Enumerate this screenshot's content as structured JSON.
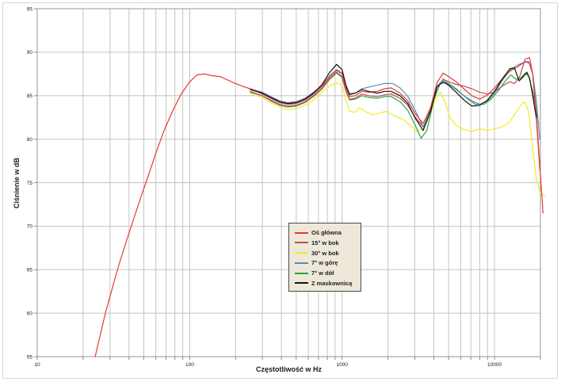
{
  "figure": {
    "background": "#ffffff",
    "frame_border_color": "#d6d6d6",
    "plot_border_color": "#a6a6a6",
    "gridline_color": "#c4c4c4",
    "tick_color": "#8a8a8a",
    "text_color": "#1a1a1a",
    "legend_background": "#ede8d9",
    "legend_border": "#4a4a4a"
  },
  "chart_data": {
    "type": "line",
    "title": "",
    "xlabel": "Częstotliwość w Hz",
    "ylabel": "Ciśnienie w dB",
    "x_scale": "log",
    "xlim": [
      10,
      20000
    ],
    "ylim": [
      55,
      95
    ],
    "grid": true,
    "legend_position": "inside-center-bottom",
    "y_ticks": [
      55,
      60,
      65,
      70,
      75,
      80,
      85,
      90,
      95
    ],
    "x_tick_labels": [
      {
        "value": 10,
        "label": "10"
      },
      {
        "value": 100,
        "label": "100"
      },
      {
        "value": 1000,
        "label": "1000"
      },
      {
        "value": 10000,
        "label": "10000"
      }
    ],
    "series": [
      {
        "id": "os-glowna",
        "name": "Oś główna",
        "color": "#e43a31",
        "points": [
          [
            24,
            55
          ],
          [
            26,
            57.6
          ],
          [
            28,
            60
          ],
          [
            31,
            62.8
          ],
          [
            34,
            65.3
          ],
          [
            38,
            68
          ],
          [
            43,
            70.9
          ],
          [
            48,
            73.4
          ],
          [
            54,
            76
          ],
          [
            60,
            78.4
          ],
          [
            68,
            81
          ],
          [
            78,
            83.4
          ],
          [
            88,
            85.2
          ],
          [
            100,
            86.6
          ],
          [
            112,
            87.4
          ],
          [
            125,
            87.5
          ],
          [
            140,
            87.3
          ],
          [
            158,
            87.2
          ],
          [
            178,
            86.8
          ],
          [
            200,
            86.4
          ],
          [
            230,
            86
          ],
          [
            260,
            85.7
          ],
          [
            300,
            85.2
          ],
          [
            340,
            84.7
          ],
          [
            390,
            84.2
          ],
          [
            440,
            84
          ],
          [
            500,
            84.1
          ],
          [
            570,
            84.5
          ],
          [
            650,
            85.2
          ],
          [
            740,
            86.1
          ],
          [
            830,
            87.2
          ],
          [
            920,
            87.9
          ],
          [
            1000,
            87.5
          ],
          [
            1060,
            85.9
          ],
          [
            1120,
            84.9
          ],
          [
            1220,
            85
          ],
          [
            1350,
            85.5
          ],
          [
            1500,
            85.4
          ],
          [
            1700,
            85.5
          ],
          [
            1900,
            85.8
          ],
          [
            2100,
            85.9
          ],
          [
            2400,
            85.3
          ],
          [
            2700,
            84.4
          ],
          [
            3000,
            83
          ],
          [
            3400,
            81.8
          ],
          [
            3800,
            83.6
          ],
          [
            4200,
            86.5
          ],
          [
            4600,
            87.6
          ],
          [
            5000,
            87.2
          ],
          [
            5600,
            86.6
          ],
          [
            6300,
            85.8
          ],
          [
            7100,
            85
          ],
          [
            8000,
            84.6
          ],
          [
            9000,
            85.1
          ],
          [
            10000,
            85.9
          ],
          [
            11200,
            86.9
          ],
          [
            12600,
            87.8
          ],
          [
            14100,
            88.3
          ],
          [
            15900,
            88.9
          ],
          [
            16800,
            88.9
          ],
          [
            17800,
            87.5
          ],
          [
            18800,
            83
          ],
          [
            19800,
            77
          ],
          [
            20800,
            71.5
          ]
        ]
      },
      {
        "id": "15-w-bok",
        "name": "15° w bok",
        "color": "#c0504d",
        "points": [
          [
            250,
            85.5
          ],
          [
            300,
            85
          ],
          [
            340,
            84.5
          ],
          [
            390,
            84
          ],
          [
            440,
            83.8
          ],
          [
            500,
            83.9
          ],
          [
            570,
            84.3
          ],
          [
            650,
            85
          ],
          [
            740,
            85.9
          ],
          [
            830,
            87
          ],
          [
            920,
            87.7
          ],
          [
            1000,
            87.2
          ],
          [
            1060,
            85.6
          ],
          [
            1120,
            84.6
          ],
          [
            1220,
            84.7
          ],
          [
            1350,
            85.2
          ],
          [
            1500,
            85
          ],
          [
            1700,
            84.9
          ],
          [
            1900,
            85.1
          ],
          [
            2100,
            85.2
          ],
          [
            2400,
            84.7
          ],
          [
            2700,
            83.9
          ],
          [
            3000,
            82.6
          ],
          [
            3400,
            81.4
          ],
          [
            3800,
            83.2
          ],
          [
            4200,
            86
          ],
          [
            4600,
            86.9
          ],
          [
            5000,
            86.6
          ],
          [
            5600,
            86.3
          ],
          [
            6300,
            86.1
          ],
          [
            7100,
            85.8
          ],
          [
            8000,
            85.4
          ],
          [
            9000,
            85.2
          ],
          [
            10000,
            85.4
          ],
          [
            11200,
            86.1
          ],
          [
            12600,
            86.6
          ],
          [
            13500,
            86.4
          ],
          [
            14500,
            87
          ],
          [
            15900,
            89.2
          ],
          [
            17000,
            89.4
          ],
          [
            17800,
            87.5
          ],
          [
            18800,
            82.5
          ],
          [
            19800,
            76.5
          ]
        ]
      },
      {
        "id": "30-w-bok",
        "name": "30° w bok",
        "color": "#f2ea25",
        "points": [
          [
            250,
            85.2
          ],
          [
            300,
            84.8
          ],
          [
            340,
            84.2
          ],
          [
            390,
            83.7
          ],
          [
            440,
            83.4
          ],
          [
            500,
            83.5
          ],
          [
            570,
            83.9
          ],
          [
            650,
            84.5
          ],
          [
            740,
            85.4
          ],
          [
            830,
            86.1
          ],
          [
            920,
            86.5
          ],
          [
            1000,
            86.2
          ],
          [
            1060,
            84.5
          ],
          [
            1120,
            83.2
          ],
          [
            1220,
            83.1
          ],
          [
            1300,
            83.6
          ],
          [
            1450,
            83.1
          ],
          [
            1600,
            82.8
          ],
          [
            1750,
            83
          ],
          [
            1950,
            83.2
          ],
          [
            2200,
            82.7
          ],
          [
            2500,
            82.3
          ],
          [
            2800,
            81.6
          ],
          [
            3100,
            80.9
          ],
          [
            3400,
            81.2
          ],
          [
            3800,
            82.9
          ],
          [
            4100,
            84.6
          ],
          [
            4400,
            85.4
          ],
          [
            4700,
            84.4
          ],
          [
            5100,
            82.5
          ],
          [
            5600,
            81.6
          ],
          [
            6300,
            81.1
          ],
          [
            7100,
            80.9
          ],
          [
            8000,
            81.2
          ],
          [
            9000,
            81
          ],
          [
            10000,
            81.2
          ],
          [
            11200,
            81.4
          ],
          [
            12600,
            82
          ],
          [
            14100,
            83.3
          ],
          [
            15000,
            84
          ],
          [
            15900,
            84.3
          ],
          [
            16800,
            83
          ],
          [
            17800,
            79
          ],
          [
            18800,
            75.5
          ],
          [
            20000,
            73.8
          ],
          [
            21500,
            73.4
          ]
        ]
      },
      {
        "id": "7-w-gore",
        "name": "7° w górę",
        "color": "#5b8ab8",
        "points": [
          [
            250,
            85.8
          ],
          [
            300,
            85.4
          ],
          [
            340,
            84.9
          ],
          [
            390,
            84.4
          ],
          [
            440,
            84.2
          ],
          [
            500,
            84.3
          ],
          [
            570,
            84.7
          ],
          [
            650,
            85.4
          ],
          [
            740,
            86.2
          ],
          [
            830,
            87.3
          ],
          [
            920,
            88
          ],
          [
            1000,
            87.6
          ],
          [
            1060,
            86
          ],
          [
            1120,
            85.1
          ],
          [
            1220,
            85.3
          ],
          [
            1350,
            85.8
          ],
          [
            1500,
            86
          ],
          [
            1700,
            86.2
          ],
          [
            1900,
            86.4
          ],
          [
            2150,
            86.4
          ],
          [
            2400,
            85.9
          ],
          [
            2700,
            84.9
          ],
          [
            3000,
            83.4
          ],
          [
            3400,
            81.4
          ],
          [
            3800,
            83.4
          ],
          [
            4200,
            86.1
          ],
          [
            4600,
            86.8
          ],
          [
            5000,
            86.4
          ],
          [
            5600,
            85.8
          ],
          [
            6300,
            85
          ],
          [
            7100,
            84.4
          ],
          [
            8000,
            84
          ],
          [
            9000,
            84.4
          ],
          [
            10000,
            85.3
          ],
          [
            11200,
            86.7
          ],
          [
            12600,
            87.9
          ],
          [
            14100,
            88.5
          ],
          [
            15900,
            88.9
          ],
          [
            17000,
            88.7
          ],
          [
            17800,
            87.5
          ],
          [
            18800,
            84.5
          ],
          [
            19800,
            80
          ]
        ]
      },
      {
        "id": "7-w-dol",
        "name": "7° w dół",
        "color": "#33a047",
        "points": [
          [
            250,
            85.4
          ],
          [
            300,
            85
          ],
          [
            340,
            84.4
          ],
          [
            390,
            83.9
          ],
          [
            440,
            83.7
          ],
          [
            500,
            83.8
          ],
          [
            570,
            84.2
          ],
          [
            650,
            84.9
          ],
          [
            740,
            85.8
          ],
          [
            830,
            86.9
          ],
          [
            920,
            87.6
          ],
          [
            1000,
            87.1
          ],
          [
            1060,
            85.5
          ],
          [
            1120,
            84.5
          ],
          [
            1220,
            84.6
          ],
          [
            1350,
            85
          ],
          [
            1500,
            84.8
          ],
          [
            1700,
            84.7
          ],
          [
            1900,
            84.9
          ],
          [
            2100,
            84.9
          ],
          [
            2400,
            84.3
          ],
          [
            2700,
            83.3
          ],
          [
            3000,
            81.7
          ],
          [
            3300,
            80.1
          ],
          [
            3600,
            81
          ],
          [
            4000,
            84.5
          ],
          [
            4400,
            86.4
          ],
          [
            4800,
            86.5
          ],
          [
            5300,
            86
          ],
          [
            6000,
            85.3
          ],
          [
            6700,
            84.6
          ],
          [
            7500,
            84
          ],
          [
            8500,
            84
          ],
          [
            9500,
            84.6
          ],
          [
            10600,
            85.6
          ],
          [
            11800,
            86.7
          ],
          [
            12800,
            87.4
          ],
          [
            13800,
            86.9
          ],
          [
            14800,
            87
          ],
          [
            15900,
            87.6
          ],
          [
            16800,
            87.2
          ],
          [
            17800,
            85.5
          ],
          [
            18800,
            83.3
          ],
          [
            19500,
            81.8
          ]
        ]
      },
      {
        "id": "z-maskownica",
        "name": "Z maskownicą",
        "color": "#141414",
        "points": [
          [
            250,
            85.7
          ],
          [
            300,
            85.3
          ],
          [
            340,
            84.8
          ],
          [
            390,
            84.3
          ],
          [
            440,
            84.1
          ],
          [
            500,
            84.2
          ],
          [
            570,
            84.6
          ],
          [
            650,
            85.3
          ],
          [
            740,
            86.3
          ],
          [
            830,
            87.7
          ],
          [
            920,
            88.6
          ],
          [
            1000,
            88
          ],
          [
            1060,
            86.2
          ],
          [
            1120,
            85.2
          ],
          [
            1220,
            85.3
          ],
          [
            1350,
            85.7
          ],
          [
            1500,
            85.5
          ],
          [
            1700,
            85.3
          ],
          [
            1900,
            85.5
          ],
          [
            2100,
            85.5
          ],
          [
            2400,
            85
          ],
          [
            2700,
            84.1
          ],
          [
            3000,
            82.5
          ],
          [
            3400,
            81
          ],
          [
            3800,
            83.2
          ],
          [
            4200,
            86
          ],
          [
            4600,
            86.6
          ],
          [
            5000,
            86.2
          ],
          [
            5600,
            85.4
          ],
          [
            6300,
            84.5
          ],
          [
            7100,
            83.8
          ],
          [
            8000,
            83.9
          ],
          [
            9000,
            84.5
          ],
          [
            10000,
            85.5
          ],
          [
            11200,
            86.9
          ],
          [
            12600,
            88.1
          ],
          [
            13500,
            88.2
          ],
          [
            14500,
            86.7
          ],
          [
            15500,
            87.2
          ],
          [
            16300,
            87.7
          ],
          [
            17000,
            87
          ],
          [
            17800,
            85
          ],
          [
            18800,
            82.5
          ]
        ]
      }
    ]
  }
}
